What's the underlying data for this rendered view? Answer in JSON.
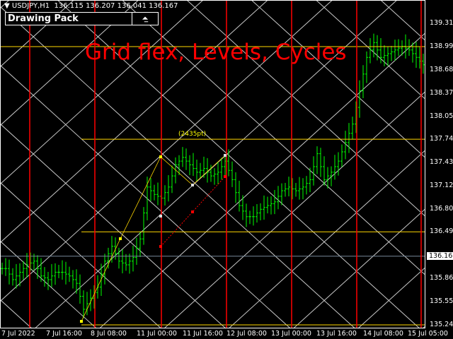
{
  "header": {
    "symbol": "USDJPY,H1",
    "ohlc": "136.115 136.207 136.041 136.167",
    "panel_title": "Drawing Pack",
    "panel_icon": "chart-window-icon"
  },
  "overlay_title": "Grid flex, Levels, Cycles",
  "measure_label": "(2435pt)",
  "price_axis": [
    "139.310",
    "138.995",
    "138.680",
    "138.370",
    "138.055",
    "137.745",
    "137.430",
    "137.120",
    "136.805",
    "136.495",
    "136.167",
    "135.865",
    "135.555",
    "135.240"
  ],
  "current_price": "136.167",
  "time_axis": [
    "7 Jul 2022",
    "7 Jul 16:00",
    "8 Jul 08:00",
    "11 Jul 00:00",
    "11 Jul 16:00",
    "12 Jul 08:00",
    "13 Jul 00:00",
    "13 Jul 16:00",
    "14 Jul 08:00",
    "15 Jul 05:00"
  ],
  "colors": {
    "bars": "#00ff00",
    "cycles": "#ff0000",
    "levels": "#ffd700",
    "grid": "#c8c8c8",
    "title": "#ff0000"
  },
  "closes": [
    136.0,
    135.85,
    135.95,
    136.05,
    136.1,
    135.9,
    135.85,
    135.95,
    135.95,
    135.9,
    135.8,
    135.45,
    135.6,
    135.75,
    136.1,
    136.3,
    136.1,
    136.05,
    136.15,
    136.4,
    137.1,
    137.0,
    136.95,
    137.1,
    137.4,
    137.5,
    137.4,
    137.3,
    137.35,
    137.25,
    137.3,
    137.45,
    137.2,
    136.85,
    136.7,
    136.7,
    136.8,
    136.85,
    136.9,
    137.05,
    137.1,
    137.05,
    137.1,
    137.2,
    137.55,
    137.2,
    137.3,
    137.45,
    137.7,
    137.95,
    138.4,
    138.85,
    139.05,
    138.85,
    138.9,
    138.95,
    139.0,
    138.95,
    138.85,
    138.75
  ],
  "levels": [
    138.995,
    137.745,
    136.495,
    135.24
  ]
}
